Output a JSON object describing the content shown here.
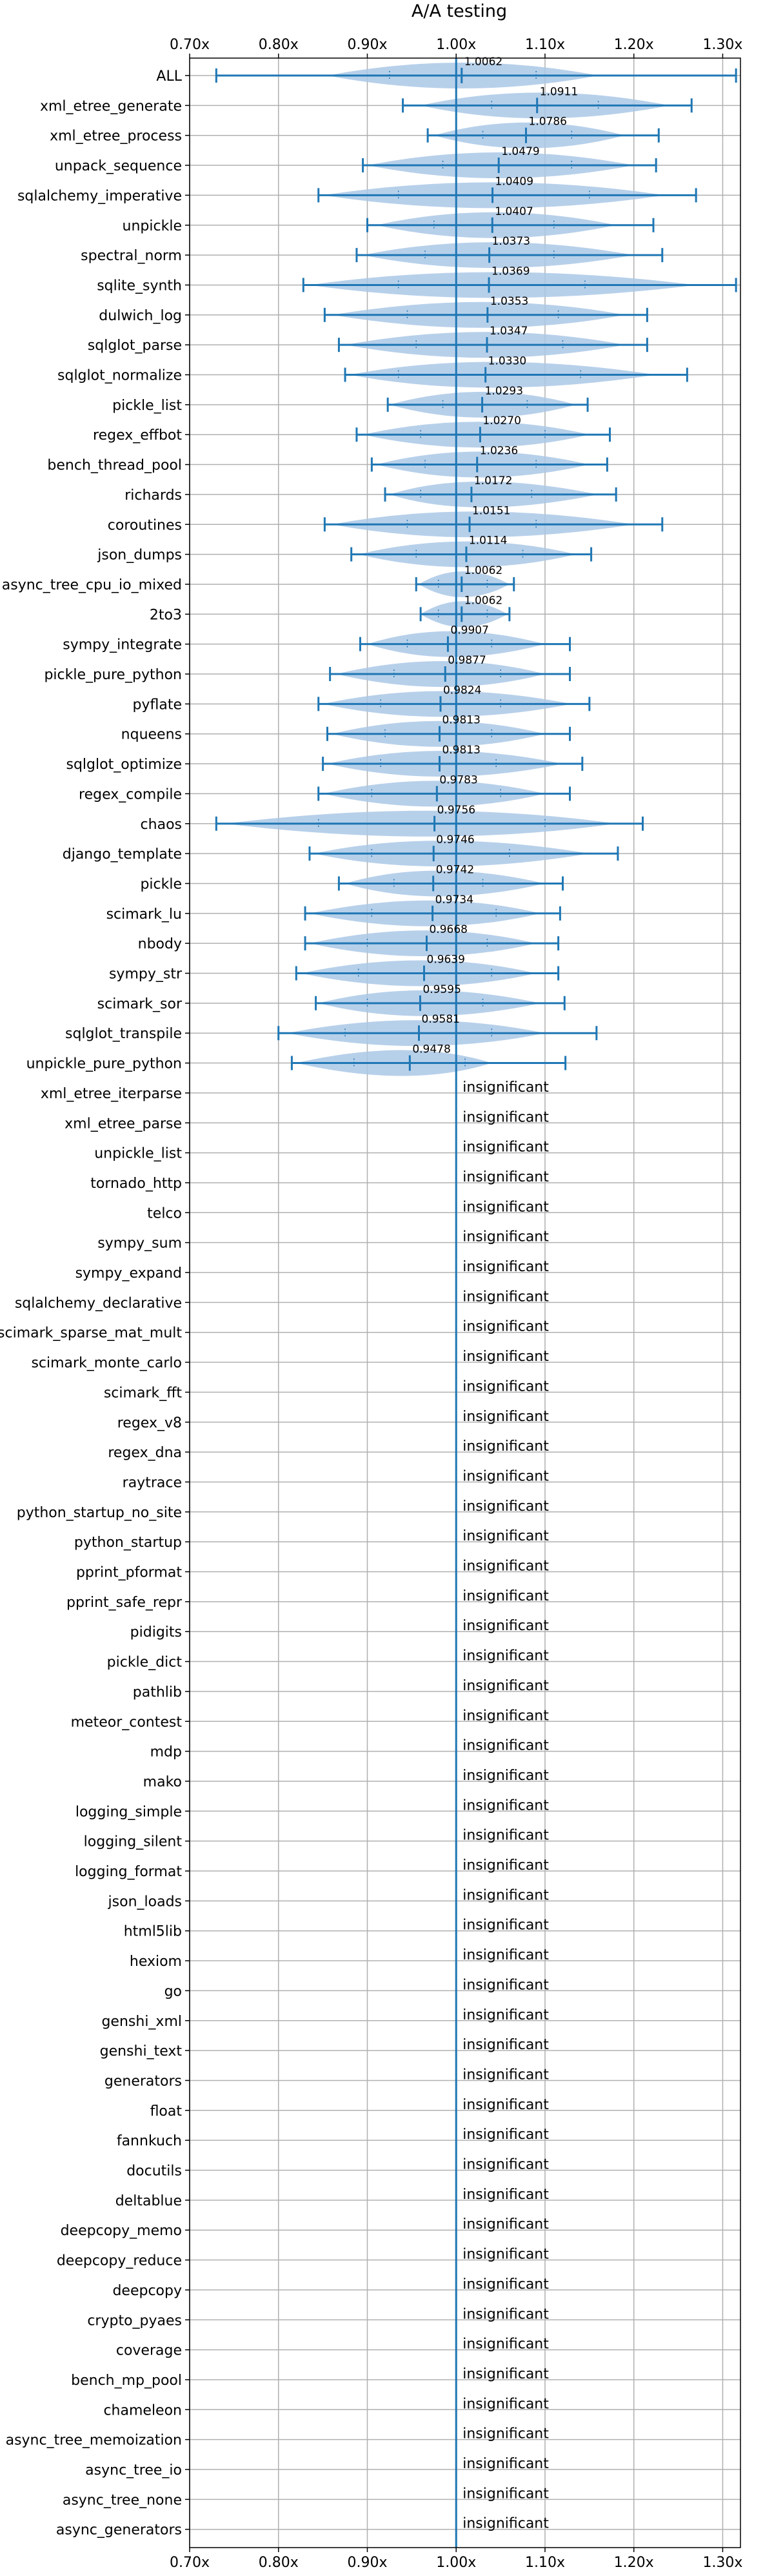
{
  "chart_data": {
    "type": "violin",
    "title": "A/A testing",
    "xlabel": "",
    "ylabel": "",
    "xlim": [
      0.7,
      1.32
    ],
    "x_ticks": [
      0.7,
      0.8,
      0.9,
      1.0,
      1.1,
      1.2,
      1.3
    ],
    "x_tick_labels": [
      "0.70x",
      "0.80x",
      "0.90x",
      "1.00x",
      "1.10x",
      "1.20x",
      "1.30x"
    ],
    "reference_line": 1.0,
    "grid": true,
    "insignificant_label": "insignificant",
    "colors": {
      "violin": "#aac8e6",
      "errorbar": "#1f77b4",
      "grid": "#b0b0b0",
      "refline": "#1f77b4"
    },
    "benchmarks": [
      {
        "name": "ALL",
        "label": "1.0062",
        "mean": 1.0062,
        "min": 0.73,
        "max": 1.315,
        "q1": 0.925,
        "q3": 1.09,
        "vmin": 0.855,
        "vmax": 1.16
      },
      {
        "name": "xml_etree_generate",
        "label": "1.0911",
        "mean": 1.0911,
        "min": 0.94,
        "max": 1.265,
        "q1": 1.04,
        "q3": 1.16,
        "vmin": 0.96,
        "vmax": 1.24
      },
      {
        "name": "xml_etree_process",
        "label": "1.0786",
        "mean": 1.0786,
        "min": 0.968,
        "max": 1.228,
        "q1": 1.03,
        "q3": 1.13,
        "vmin": 0.975,
        "vmax": 1.19
      },
      {
        "name": "unpack_sequence",
        "label": "1.0479",
        "mean": 1.0479,
        "min": 0.895,
        "max": 1.225,
        "q1": 0.985,
        "q3": 1.13,
        "vmin": 0.9,
        "vmax": 1.2
      },
      {
        "name": "sqlalchemy_imperative",
        "label": "1.0409",
        "mean": 1.0409,
        "min": 0.845,
        "max": 1.27,
        "q1": 0.935,
        "q3": 1.15,
        "vmin": 0.85,
        "vmax": 1.235
      },
      {
        "name": "unpickle",
        "label": "1.0407",
        "mean": 1.0407,
        "min": 0.9,
        "max": 1.222,
        "q1": 0.975,
        "q3": 1.11,
        "vmin": 0.91,
        "vmax": 1.18
      },
      {
        "name": "spectral_norm",
        "label": "1.0373",
        "mean": 1.0373,
        "min": 0.888,
        "max": 1.232,
        "q1": 0.965,
        "q3": 1.11,
        "vmin": 0.895,
        "vmax": 1.2
      },
      {
        "name": "sqlite_synth",
        "label": "1.0369",
        "mean": 1.0369,
        "min": 0.828,
        "max": 1.315,
        "q1": 0.935,
        "q3": 1.145,
        "vmin": 0.835,
        "vmax": 1.27
      },
      {
        "name": "dulwich_log",
        "label": "1.0353",
        "mean": 1.0353,
        "min": 0.852,
        "max": 1.215,
        "q1": 0.945,
        "q3": 1.115,
        "vmin": 0.86,
        "vmax": 1.19
      },
      {
        "name": "sqlglot_parse",
        "label": "1.0347",
        "mean": 1.0347,
        "min": 0.868,
        "max": 1.215,
        "q1": 0.955,
        "q3": 1.12,
        "vmin": 0.875,
        "vmax": 1.19
      },
      {
        "name": "sqlglot_normalize",
        "label": "1.0330",
        "mean": 1.033,
        "min": 0.875,
        "max": 1.26,
        "q1": 0.935,
        "q3": 1.14,
        "vmin": 0.88,
        "vmax": 1.225
      },
      {
        "name": "pickle_list",
        "label": "1.0293",
        "mean": 1.0293,
        "min": 0.923,
        "max": 1.148,
        "q1": 0.985,
        "q3": 1.08,
        "vmin": 0.925,
        "vmax": 1.135
      },
      {
        "name": "regex_effbot",
        "label": "1.0270",
        "mean": 1.027,
        "min": 0.888,
        "max": 1.173,
        "q1": 0.96,
        "q3": 1.1,
        "vmin": 0.895,
        "vmax": 1.15
      },
      {
        "name": "bench_thread_pool",
        "label": "1.0236",
        "mean": 1.0236,
        "min": 0.905,
        "max": 1.17,
        "q1": 0.965,
        "q3": 1.09,
        "vmin": 0.91,
        "vmax": 1.15
      },
      {
        "name": "richards",
        "label": "1.0172",
        "mean": 1.0172,
        "min": 0.92,
        "max": 1.18,
        "q1": 0.96,
        "q3": 1.085,
        "vmin": 0.925,
        "vmax": 1.16
      },
      {
        "name": "coroutines",
        "label": "1.0151",
        "mean": 1.0151,
        "min": 0.852,
        "max": 1.232,
        "q1": 0.945,
        "q3": 1.09,
        "vmin": 0.86,
        "vmax": 1.2
      },
      {
        "name": "json_dumps",
        "label": "1.0114",
        "mean": 1.0114,
        "min": 0.882,
        "max": 1.152,
        "q1": 0.955,
        "q3": 1.075,
        "vmin": 0.89,
        "vmax": 1.135
      },
      {
        "name": "async_tree_cpu_io_mixed",
        "label": "1.0062",
        "mean": 1.0062,
        "min": 0.955,
        "max": 1.065,
        "q1": 0.98,
        "q3": 1.035,
        "vmin": 0.958,
        "vmax": 1.06
      },
      {
        "name": "2to3",
        "label": "1.0062",
        "mean": 1.0062,
        "min": 0.96,
        "max": 1.06,
        "q1": 0.98,
        "q3": 1.035,
        "vmin": 0.96,
        "vmax": 1.058
      },
      {
        "name": "sympy_integrate",
        "label": "0.9907",
        "mean": 0.9907,
        "min": 0.892,
        "max": 1.128,
        "q1": 0.945,
        "q3": 1.04,
        "vmin": 0.9,
        "vmax": 1.1
      },
      {
        "name": "pickle_pure_python",
        "label": "0.9877",
        "mean": 0.9877,
        "min": 0.858,
        "max": 1.128,
        "q1": 0.93,
        "q3": 1.05,
        "vmin": 0.865,
        "vmax": 1.1
      },
      {
        "name": "pyflate",
        "label": "0.9824",
        "mean": 0.9824,
        "min": 0.845,
        "max": 1.15,
        "q1": 0.915,
        "q3": 1.05,
        "vmin": 0.85,
        "vmax": 1.13
      },
      {
        "name": "nqueens",
        "label": "0.9813",
        "mean": 0.9813,
        "min": 0.855,
        "max": 1.128,
        "q1": 0.92,
        "q3": 1.04,
        "vmin": 0.86,
        "vmax": 1.1
      },
      {
        "name": "sqlglot_optimize",
        "label": "0.9813",
        "mean": 0.9813,
        "min": 0.85,
        "max": 1.142,
        "q1": 0.915,
        "q3": 1.045,
        "vmin": 0.855,
        "vmax": 1.12
      },
      {
        "name": "regex_compile",
        "label": "0.9783",
        "mean": 0.9783,
        "min": 0.845,
        "max": 1.128,
        "q1": 0.905,
        "q3": 1.05,
        "vmin": 0.85,
        "vmax": 1.1
      },
      {
        "name": "chaos",
        "label": "0.9756",
        "mean": 0.9756,
        "min": 0.73,
        "max": 1.21,
        "q1": 0.845,
        "q3": 1.1,
        "vmin": 0.74,
        "vmax": 1.18
      },
      {
        "name": "django_template",
        "label": "0.9746",
        "mean": 0.9746,
        "min": 0.835,
        "max": 1.182,
        "q1": 0.905,
        "q3": 1.06,
        "vmin": 0.84,
        "vmax": 1.15
      },
      {
        "name": "pickle",
        "label": "0.9742",
        "mean": 0.9742,
        "min": 0.868,
        "max": 1.12,
        "q1": 0.93,
        "q3": 1.03,
        "vmin": 0.875,
        "vmax": 1.1
      },
      {
        "name": "scimark_lu",
        "label": "0.9734",
        "mean": 0.9734,
        "min": 0.83,
        "max": 1.117,
        "q1": 0.905,
        "q3": 1.045,
        "vmin": 0.835,
        "vmax": 1.095
      },
      {
        "name": "nbody",
        "label": "0.9668",
        "mean": 0.9668,
        "min": 0.83,
        "max": 1.115,
        "q1": 0.9,
        "q3": 1.035,
        "vmin": 0.835,
        "vmax": 1.09
      },
      {
        "name": "sympy_str",
        "label": "0.9639",
        "mean": 0.9639,
        "min": 0.82,
        "max": 1.115,
        "q1": 0.89,
        "q3": 1.04,
        "vmin": 0.825,
        "vmax": 1.09
      },
      {
        "name": "scimark_sor",
        "label": "0.9595",
        "mean": 0.9595,
        "min": 0.842,
        "max": 1.122,
        "q1": 0.9,
        "q3": 1.03,
        "vmin": 0.845,
        "vmax": 1.095
      },
      {
        "name": "sqlglot_transpile",
        "label": "0.9581",
        "mean": 0.9581,
        "min": 0.8,
        "max": 1.158,
        "q1": 0.875,
        "q3": 1.04,
        "vmin": 0.81,
        "vmax": 1.1
      },
      {
        "name": "unpickle_pure_python",
        "label": "0.9478",
        "mean": 0.9478,
        "min": 0.815,
        "max": 1.123,
        "q1": 0.885,
        "q3": 1.01,
        "vmin": 0.82,
        "vmax": 1.04
      },
      {
        "name": "xml_etree_iterparse",
        "insignificant": true
      },
      {
        "name": "xml_etree_parse",
        "insignificant": true
      },
      {
        "name": "unpickle_list",
        "insignificant": true
      },
      {
        "name": "tornado_http",
        "insignificant": true
      },
      {
        "name": "telco",
        "insignificant": true
      },
      {
        "name": "sympy_sum",
        "insignificant": true
      },
      {
        "name": "sympy_expand",
        "insignificant": true
      },
      {
        "name": "sqlalchemy_declarative",
        "insignificant": true
      },
      {
        "name": "scimark_sparse_mat_mult",
        "insignificant": true
      },
      {
        "name": "scimark_monte_carlo",
        "insignificant": true
      },
      {
        "name": "scimark_fft",
        "insignificant": true
      },
      {
        "name": "regex_v8",
        "insignificant": true
      },
      {
        "name": "regex_dna",
        "insignificant": true
      },
      {
        "name": "raytrace",
        "insignificant": true
      },
      {
        "name": "python_startup_no_site",
        "insignificant": true
      },
      {
        "name": "python_startup",
        "insignificant": true
      },
      {
        "name": "pprint_pformat",
        "insignificant": true
      },
      {
        "name": "pprint_safe_repr",
        "insignificant": true
      },
      {
        "name": "pidigits",
        "insignificant": true
      },
      {
        "name": "pickle_dict",
        "insignificant": true
      },
      {
        "name": "pathlib",
        "insignificant": true
      },
      {
        "name": "meteor_contest",
        "insignificant": true
      },
      {
        "name": "mdp",
        "insignificant": true
      },
      {
        "name": "mako",
        "insignificant": true
      },
      {
        "name": "logging_simple",
        "insignificant": true
      },
      {
        "name": "logging_silent",
        "insignificant": true
      },
      {
        "name": "logging_format",
        "insignificant": true
      },
      {
        "name": "json_loads",
        "insignificant": true
      },
      {
        "name": "html5lib",
        "insignificant": true
      },
      {
        "name": "hexiom",
        "insignificant": true
      },
      {
        "name": "go",
        "insignificant": true
      },
      {
        "name": "genshi_xml",
        "insignificant": true
      },
      {
        "name": "genshi_text",
        "insignificant": true
      },
      {
        "name": "generators",
        "insignificant": true
      },
      {
        "name": "float",
        "insignificant": true
      },
      {
        "name": "fannkuch",
        "insignificant": true
      },
      {
        "name": "docutils",
        "insignificant": true
      },
      {
        "name": "deltablue",
        "insignificant": true
      },
      {
        "name": "deepcopy_memo",
        "insignificant": true
      },
      {
        "name": "deepcopy_reduce",
        "insignificant": true
      },
      {
        "name": "deepcopy",
        "insignificant": true
      },
      {
        "name": "crypto_pyaes",
        "insignificant": true
      },
      {
        "name": "coverage",
        "insignificant": true
      },
      {
        "name": "bench_mp_pool",
        "insignificant": true
      },
      {
        "name": "chameleon",
        "insignificant": true
      },
      {
        "name": "async_tree_memoization",
        "insignificant": true
      },
      {
        "name": "async_tree_io",
        "insignificant": true
      },
      {
        "name": "async_tree_none",
        "insignificant": true
      },
      {
        "name": "async_generators",
        "insignificant": true
      }
    ]
  }
}
